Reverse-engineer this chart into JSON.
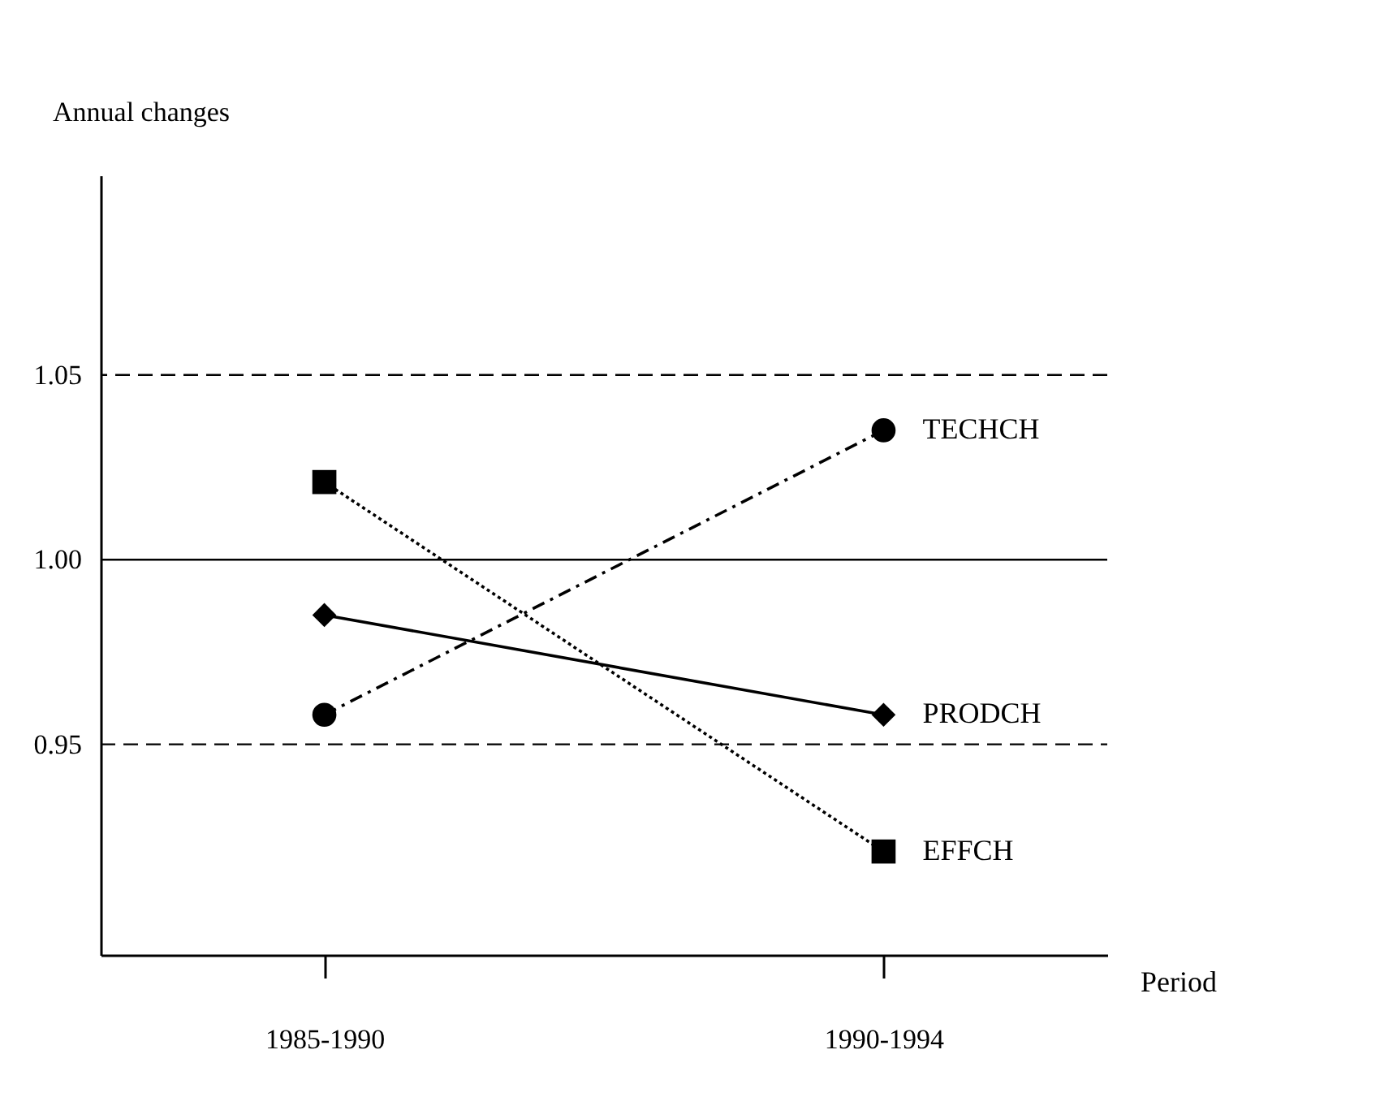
{
  "chart_data": {
    "type": "line",
    "xlabel": "Period",
    "ylabel": "Annual changes",
    "categories": [
      "1985-1990",
      "1990-1994"
    ],
    "ylim": [
      0.893,
      1.104
    ],
    "yticks": [
      {
        "value": 0.95,
        "label": "0.95"
      },
      {
        "value": 1.0,
        "label": "1.00"
      },
      {
        "value": 1.05,
        "label": "1.05"
      }
    ],
    "series": [
      {
        "name": "TECHCH",
        "color": "#000000",
        "values": [
          0.958,
          1.035
        ],
        "marker": "circle",
        "line_style": "dashed"
      },
      {
        "name": "PRODCH",
        "color": "#000000",
        "values": [
          0.985,
          0.958
        ],
        "marker": "diamond",
        "line_style": "solid"
      },
      {
        "name": "EFFCH",
        "color": "#000000",
        "values": [
          1.021,
          0.921
        ],
        "marker": "square",
        "line_style": "dotted"
      }
    ],
    "ref_lines": [
      {
        "axis": "y",
        "value": 1.05,
        "line_style": "dashed",
        "color": "#000000"
      },
      {
        "axis": "y",
        "value": 1.0,
        "line_style": "solid",
        "color": "#000000"
      },
      {
        "axis": "y",
        "value": 0.95,
        "line_style": "dashed",
        "color": "#000000"
      }
    ],
    "grid": false
  }
}
